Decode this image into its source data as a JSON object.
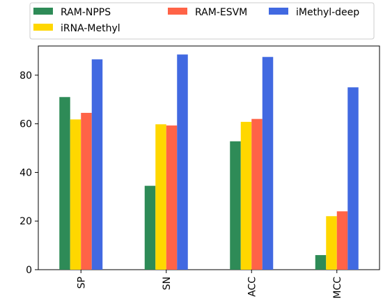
{
  "chart_data": {
    "type": "bar",
    "title": "",
    "xlabel": "",
    "ylabel": "",
    "categories": [
      "SP",
      "SN",
      "ACC",
      "MCC"
    ],
    "series": [
      {
        "name": "RAM-NPPS",
        "color": "#2e8b57",
        "values": [
          71.0,
          34.5,
          52.8,
          6.0
        ]
      },
      {
        "name": "iRNA-Methyl",
        "color": "#ffd700",
        "values": [
          61.8,
          59.8,
          60.8,
          22.0
        ]
      },
      {
        "name": "RAM-ESVM",
        "color": "#ff6347",
        "values": [
          64.5,
          59.3,
          62.0,
          24.0
        ]
      },
      {
        "name": "iMethyl-deep",
        "color": "#4169e1",
        "values": [
          86.5,
          88.5,
          87.5,
          75.0
        ]
      }
    ],
    "ylim": [
      0,
      92
    ],
    "yticks": [
      0,
      20,
      40,
      60,
      80
    ],
    "grid": false,
    "legend_position": "top"
  }
}
